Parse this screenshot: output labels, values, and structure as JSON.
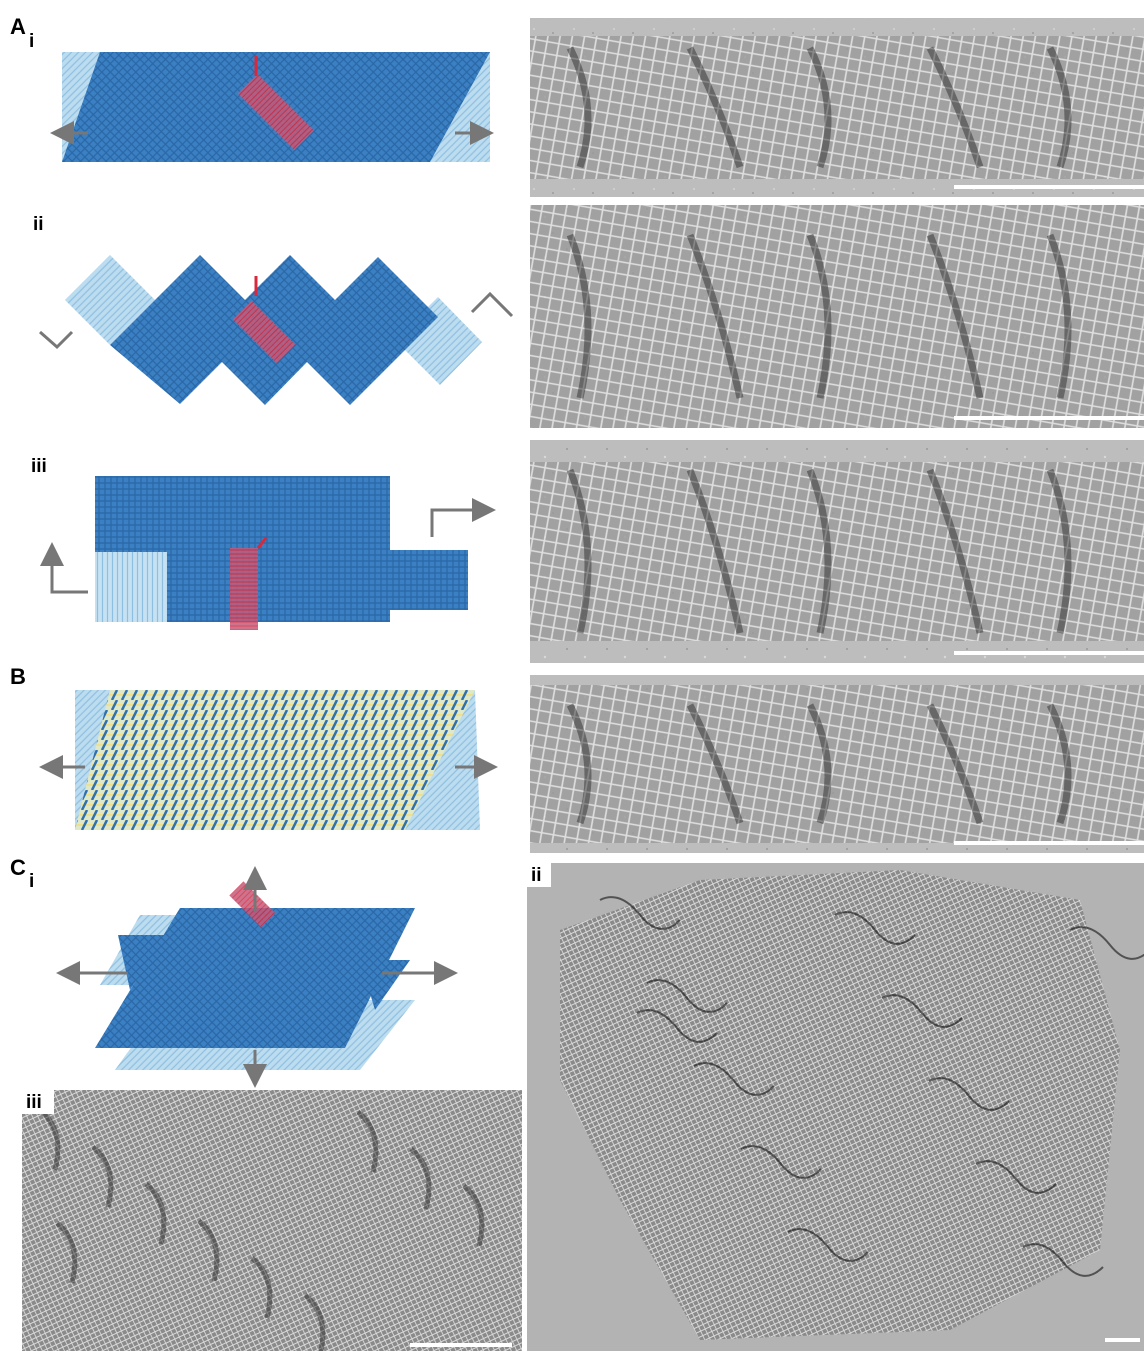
{
  "panels": {
    "A": {
      "label": "A",
      "rows": [
        {
          "label": "i"
        },
        {
          "label": "ii"
        },
        {
          "label": "iii"
        }
      ]
    },
    "B": {
      "label": "B"
    },
    "C": {
      "label": "C",
      "parts": [
        {
          "label": "i"
        },
        {
          "label": "ii"
        },
        {
          "label": "iii"
        }
      ]
    }
  }
}
